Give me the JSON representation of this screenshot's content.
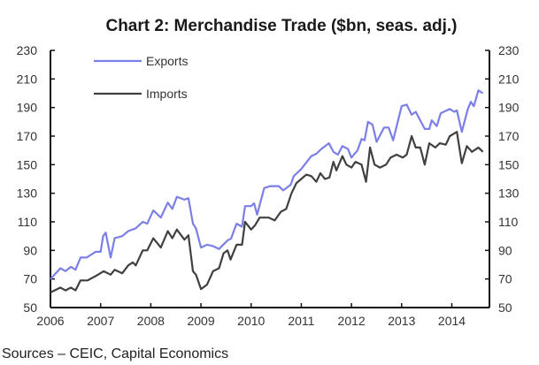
{
  "chart_data": {
    "type": "line",
    "title": "Chart 2: Merchandise Trade ($bn, seas. adj.)",
    "source": "Sources – CEIC, Capital Economics",
    "xlabel": "",
    "ylabel": "",
    "xlim": [
      2006,
      2014.75
    ],
    "ylim": [
      50,
      230
    ],
    "x_ticks": [
      "2006",
      "2007",
      "2008",
      "2009",
      "2010",
      "2011",
      "2012",
      "2013",
      "2014"
    ],
    "y_ticks": [
      "50",
      "70",
      "90",
      "110",
      "130",
      "150",
      "170",
      "190",
      "210",
      "230"
    ],
    "y_axis_sides": [
      "left",
      "right"
    ],
    "grid": false,
    "legend_position": "top-left",
    "series": [
      {
        "name": "Exports",
        "color": "#7b7fe6",
        "x": [
          2006.0,
          2006.2,
          2006.3,
          2006.41,
          2006.5,
          2006.6,
          2006.72,
          2006.9,
          2007.0,
          2007.05,
          2007.1,
          2007.2,
          2007.28,
          2007.43,
          2007.55,
          2007.7,
          2007.84,
          2007.93,
          2008.05,
          2008.2,
          2008.34,
          2008.43,
          2008.52,
          2008.67,
          2008.75,
          2008.84,
          2008.9,
          2009.0,
          2009.12,
          2009.24,
          2009.36,
          2009.53,
          2009.6,
          2009.71,
          2009.82,
          2009.88,
          2010.0,
          2010.06,
          2010.12,
          2010.26,
          2010.38,
          2010.55,
          2010.64,
          2010.79,
          2010.85,
          2011.0,
          2011.2,
          2011.3,
          2011.4,
          2011.55,
          2011.64,
          2011.73,
          2011.82,
          2011.93,
          2012.0,
          2012.12,
          2012.2,
          2012.26,
          2012.33,
          2012.42,
          2012.5,
          2012.65,
          2012.74,
          2012.83,
          2013.0,
          2013.1,
          2013.2,
          2013.28,
          2013.46,
          2013.55,
          2013.6,
          2013.7,
          2013.78,
          2013.96,
          2014.05,
          2014.1,
          2014.2,
          2014.32,
          2014.38,
          2014.44,
          2014.53,
          2014.62
        ],
        "values": [
          70,
          77.5,
          75.5,
          78.5,
          76.5,
          85,
          85,
          89,
          89,
          100,
          102.5,
          85,
          98.6,
          100,
          103.5,
          105.5,
          110,
          108.7,
          118,
          113,
          123.5,
          119,
          127.5,
          125.5,
          126.5,
          108.7,
          105.5,
          92,
          94,
          93,
          91,
          97,
          98.3,
          108.7,
          106.6,
          121,
          121,
          123,
          115,
          133.6,
          135,
          135,
          132,
          136,
          142,
          147,
          156,
          157.6,
          161,
          165,
          159,
          157,
          163,
          161,
          155,
          160,
          168,
          167,
          180,
          178,
          166,
          176,
          176,
          167,
          191,
          192,
          185,
          187,
          175,
          175,
          181,
          177,
          186,
          189,
          187,
          188,
          173,
          189,
          194,
          191,
          202,
          200
        ]
      },
      {
        "name": "Imports",
        "color": "#404040",
        "x": [
          2006.0,
          2006.2,
          2006.3,
          2006.41,
          2006.5,
          2006.6,
          2006.74,
          2006.9,
          2007.06,
          2007.2,
          2007.28,
          2007.43,
          2007.55,
          2007.64,
          2007.7,
          2007.84,
          2007.93,
          2008.05,
          2008.2,
          2008.34,
          2008.43,
          2008.52,
          2008.67,
          2008.75,
          2008.84,
          2008.9,
          2009.0,
          2009.12,
          2009.24,
          2009.36,
          2009.45,
          2009.53,
          2009.59,
          2009.71,
          2009.82,
          2009.88,
          2010.0,
          2010.08,
          2010.17,
          2010.35,
          2010.47,
          2010.59,
          2010.7,
          2010.8,
          2010.9,
          2011.0,
          2011.1,
          2011.2,
          2011.3,
          2011.38,
          2011.47,
          2011.56,
          2011.64,
          2011.7,
          2011.82,
          2011.9,
          2012.0,
          2012.08,
          2012.2,
          2012.29,
          2012.37,
          2012.46,
          2012.57,
          2012.69,
          2012.78,
          2012.9,
          2013.02,
          2013.1,
          2013.2,
          2013.28,
          2013.37,
          2013.46,
          2013.55,
          2013.67,
          2013.76,
          2013.88,
          2013.96,
          2014.1,
          2014.2,
          2014.3,
          2014.4,
          2014.53,
          2014.62
        ],
        "values": [
          60.6,
          64,
          62,
          64,
          62,
          69,
          69,
          72,
          75.4,
          73,
          76.5,
          74,
          79.5,
          81.6,
          79.5,
          90,
          90,
          98.5,
          92,
          103.5,
          98.5,
          104.6,
          97.5,
          100.6,
          75.4,
          73,
          62.9,
          66,
          75.4,
          77.5,
          88,
          90,
          83.6,
          94,
          94,
          110,
          104.6,
          107.7,
          113,
          113,
          111,
          117,
          119,
          129.6,
          137,
          140,
          143,
          142,
          138,
          144,
          140,
          141,
          152,
          146,
          156,
          150,
          148,
          152,
          150,
          138,
          162,
          150,
          148,
          150,
          155,
          157,
          155,
          157,
          170,
          162,
          162,
          150,
          165,
          162,
          165,
          164,
          170,
          173,
          151,
          163,
          159,
          162,
          159
        ]
      }
    ]
  }
}
